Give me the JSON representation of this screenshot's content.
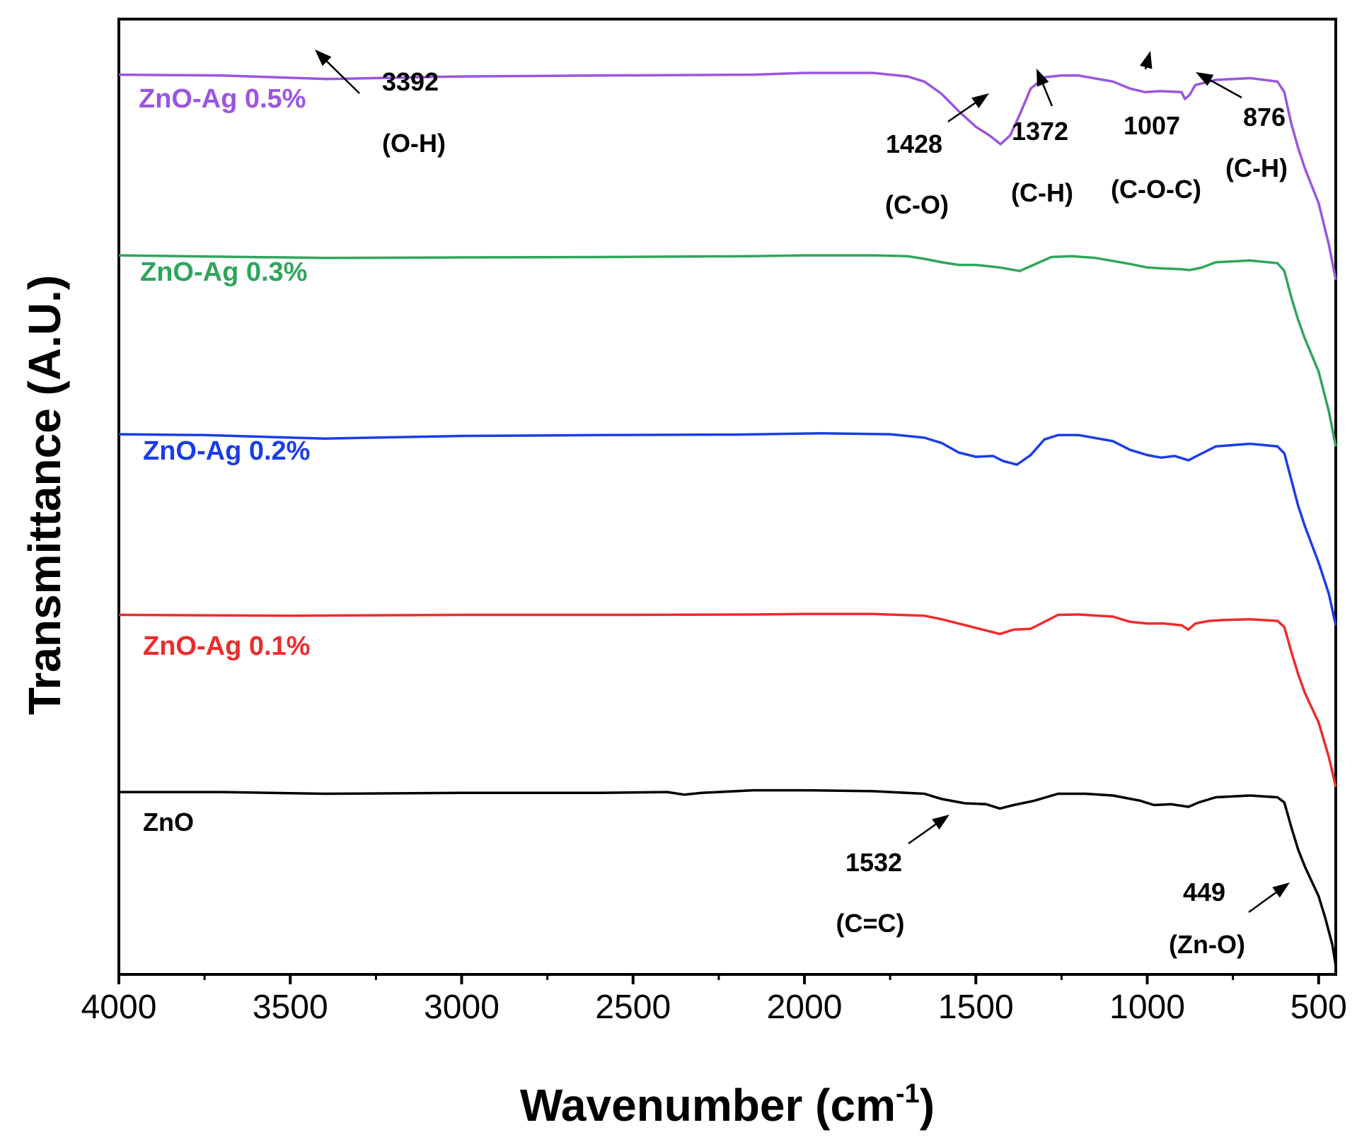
{
  "chart_data": {
    "type": "line",
    "title": "",
    "xlabel": "Wavenumber (cm",
    "xlabel_sup": "-1",
    "xlabel_close": ")",
    "ylabel": "Transmittance (A.U.)",
    "xlim": [
      4000,
      450
    ],
    "x_reversed": true,
    "ylim": [
      0,
      5.5
    ],
    "grid": false,
    "x_ticks": [
      4000,
      3500,
      3000,
      2500,
      2000,
      1500,
      1000,
      500
    ],
    "x_tick_labels": [
      "4000",
      "3500",
      "3000",
      "2500",
      "2000",
      "1500",
      "1000",
      "500"
    ],
    "series": [
      {
        "name": "ZnO",
        "label": "ZnO",
        "color": "#000000",
        "x": [
          4000,
          3700,
          3400,
          3000,
          2600,
          2400,
          2350,
          2300,
          2150,
          2000,
          1800,
          1650,
          1600,
          1532,
          1470,
          1430,
          1390,
          1330,
          1260,
          1180,
          1100,
          1020,
          980,
          930,
          880,
          850,
          800,
          700,
          620,
          600,
          580,
          560,
          540,
          500,
          480,
          460,
          450
        ],
        "y": [
          1.05,
          1.05,
          1.04,
          1.045,
          1.045,
          1.05,
          1.035,
          1.045,
          1.06,
          1.06,
          1.055,
          1.04,
          1.01,
          0.985,
          0.98,
          0.955,
          0.975,
          1.0,
          1.04,
          1.04,
          1.03,
          1.0,
          0.975,
          0.98,
          0.965,
          0.99,
          1.02,
          1.03,
          1.02,
          0.99,
          0.85,
          0.72,
          0.62,
          0.45,
          0.32,
          0.17,
          0.05
        ]
      },
      {
        "name": "ZnO-Ag 0.1%",
        "label": "ZnO-Ag 0.1%",
        "color": "#ef2b2b",
        "x": [
          4000,
          3500,
          3000,
          2500,
          2150,
          2000,
          1800,
          1650,
          1600,
          1550,
          1480,
          1430,
          1390,
          1340,
          1300,
          1260,
          1200,
          1100,
          1050,
          1000,
          950,
          900,
          880,
          860,
          820,
          780,
          700,
          620,
          600,
          580,
          560,
          540,
          500,
          470,
          450
        ],
        "y": [
          2.07,
          2.065,
          2.07,
          2.07,
          2.072,
          2.075,
          2.075,
          2.065,
          2.045,
          2.02,
          1.985,
          1.96,
          1.985,
          1.99,
          2.03,
          2.07,
          2.072,
          2.06,
          2.03,
          2.02,
          2.02,
          2.01,
          1.985,
          2.02,
          2.035,
          2.04,
          2.045,
          2.035,
          2.0,
          1.86,
          1.73,
          1.62,
          1.45,
          1.25,
          1.08
        ]
      },
      {
        "name": "ZnO-Ag 0.2%",
        "label": "ZnO-Ag 0.2%",
        "color": "#1a3de8",
        "x": [
          4000,
          3750,
          3400,
          3000,
          2600,
          2200,
          1950,
          1750,
          1650,
          1600,
          1550,
          1500,
          1450,
          1420,
          1380,
          1340,
          1300,
          1260,
          1200,
          1100,
          1050,
          1000,
          960,
          920,
          880,
          850,
          800,
          700,
          620,
          600,
          580,
          560,
          540,
          500,
          470,
          450
        ],
        "y": [
          3.11,
          3.105,
          3.085,
          3.1,
          3.105,
          3.108,
          3.115,
          3.11,
          3.09,
          3.06,
          3.005,
          2.98,
          2.985,
          2.955,
          2.935,
          2.99,
          3.08,
          3.105,
          3.105,
          3.07,
          3.02,
          2.99,
          2.975,
          2.985,
          2.96,
          2.99,
          3.04,
          3.055,
          3.04,
          3.0,
          2.85,
          2.7,
          2.58,
          2.37,
          2.19,
          2.01
        ]
      },
      {
        "name": "ZnO-Ag 0.3%",
        "label": "ZnO-Ag 0.3%",
        "color": "#2fa55c",
        "x": [
          4000,
          3400,
          3000,
          2600,
          2150,
          2000,
          1800,
          1700,
          1650,
          1600,
          1550,
          1500,
          1430,
          1372,
          1320,
          1280,
          1220,
          1150,
          1050,
          1000,
          960,
          900,
          876,
          840,
          800,
          700,
          620,
          600,
          580,
          560,
          540,
          500,
          470,
          450
        ],
        "y": [
          4.14,
          4.125,
          4.128,
          4.13,
          4.135,
          4.14,
          4.14,
          4.135,
          4.12,
          4.1,
          4.085,
          4.085,
          4.07,
          4.05,
          4.095,
          4.13,
          4.135,
          4.125,
          4.09,
          4.07,
          4.065,
          4.06,
          4.055,
          4.07,
          4.1,
          4.11,
          4.095,
          4.05,
          3.9,
          3.77,
          3.66,
          3.47,
          3.24,
          3.04
        ]
      },
      {
        "name": "ZnO-Ag 0.5%",
        "label": "ZnO-Ag 0.5%",
        "color": "#9b55e0",
        "x": [
          4000,
          3700,
          3392,
          3000,
          2600,
          2150,
          2000,
          1800,
          1700,
          1650,
          1600,
          1550,
          1500,
          1460,
          1428,
          1400,
          1372,
          1340,
          1300,
          1250,
          1200,
          1100,
          1050,
          1007,
          960,
          900,
          890,
          876,
          860,
          800,
          700,
          620,
          600,
          580,
          560,
          540,
          500,
          470,
          450
        ],
        "y": [
          5.18,
          5.175,
          5.155,
          5.17,
          5.175,
          5.18,
          5.19,
          5.19,
          5.17,
          5.14,
          5.07,
          4.97,
          4.88,
          4.83,
          4.78,
          4.83,
          4.95,
          5.1,
          5.165,
          5.175,
          5.175,
          5.14,
          5.1,
          5.08,
          5.085,
          5.08,
          5.04,
          5.065,
          5.12,
          5.15,
          5.16,
          5.14,
          5.08,
          4.9,
          4.76,
          4.64,
          4.44,
          4.2,
          4.0
        ]
      }
    ],
    "annotations": [
      {
        "value": "3392",
        "mode": "O-H",
        "mode_label": "(O-H)",
        "series": "ZnO-Ag 0.5%",
        "x": 3392
      },
      {
        "value": "1428",
        "mode": "C-O",
        "mode_label": "(C-O)",
        "series": "ZnO-Ag 0.5%",
        "x": 1428
      },
      {
        "value": "1372",
        "mode": "C-H",
        "mode_label": "(C-H)",
        "series": "ZnO-Ag 0.5%",
        "x": 1372
      },
      {
        "value": "1007",
        "mode": "C-O-C",
        "mode_label": "(C-O-C)",
        "series": "ZnO-Ag 0.5%",
        "x": 1007
      },
      {
        "value": "876",
        "mode": "C-H",
        "mode_label": "(C-H)",
        "series": "ZnO-Ag 0.5%",
        "x": 876
      },
      {
        "value": "1532",
        "mode": "C=C",
        "mode_label": "(C=C)",
        "series": "ZnO",
        "x": 1532
      },
      {
        "value": "449",
        "mode": "Zn-O",
        "mode_label": "(Zn-O)",
        "series": "ZnO",
        "x": 540
      }
    ]
  }
}
